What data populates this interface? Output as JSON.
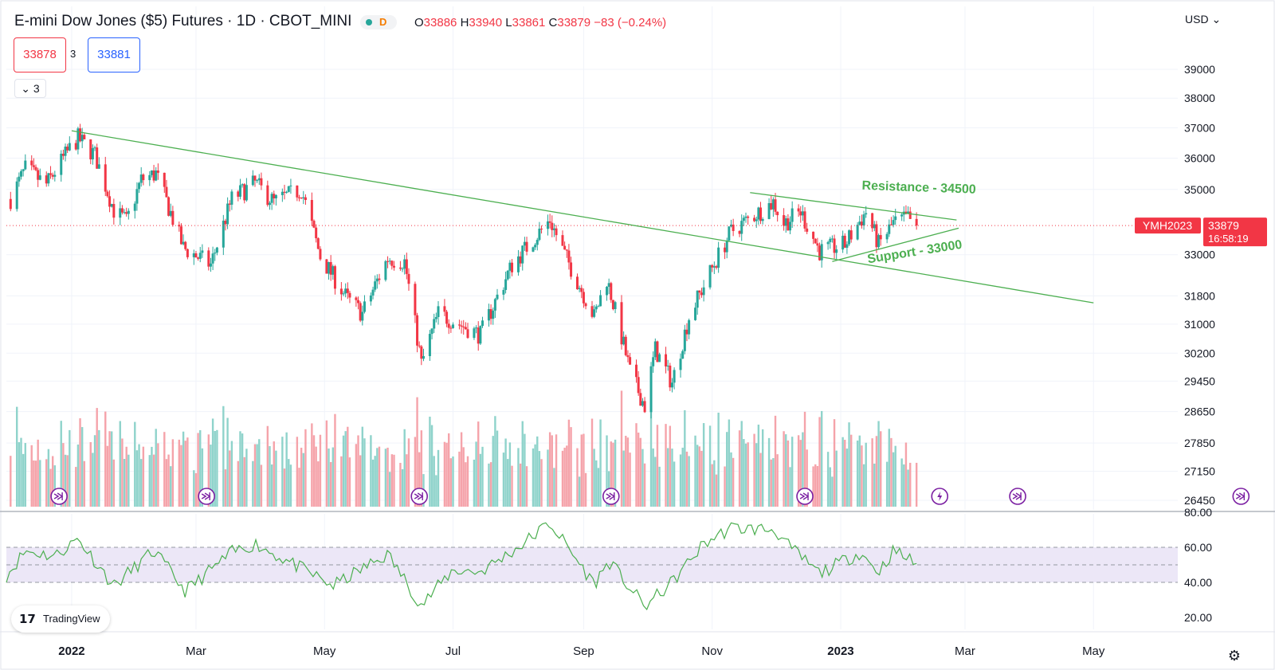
{
  "header": {
    "title": "E-mini Dow Jones ($5) Futures · 1D · CBOT_MINI",
    "status_badge": "D",
    "ohlc": {
      "o_label": "O",
      "o": "33886",
      "h_label": "H",
      "h": "33940",
      "l_label": "L",
      "l": "33861",
      "c_label": "C",
      "c": "33879",
      "change": "−83 (−0.24%)"
    },
    "sell_price": "33878",
    "spread": "3",
    "buy_price": "33881",
    "indicators_count": "3",
    "currency": "USD"
  },
  "price_badge": {
    "symbol": "YMH2023",
    "price": "33879",
    "countdown": "16:58:19"
  },
  "logo_text": "TradingView",
  "colors": {
    "up": "#26a69a",
    "down": "#f23645",
    "trendline": "#4caf50",
    "rsi_line": "#4caf50",
    "rsi_band": "#ece7f7",
    "event_marker": "#7b1fa2"
  },
  "chart_data": [
    {
      "type": "candlestick",
      "title": "E-mini Dow Jones ($5) Futures · 1D · CBOT_MINI",
      "y_axis": {
        "ticks": [
          "39000",
          "38000",
          "37000",
          "36000",
          "35000",
          "33000",
          "31800",
          "31000",
          "30200",
          "29450",
          "28650",
          "27850",
          "27150",
          "26450"
        ],
        "tick_values": [
          39000,
          38000,
          37000,
          36000,
          35000,
          33000,
          31800,
          31000,
          30200,
          29450,
          28650,
          27850,
          27150,
          26450
        ],
        "scale": "log"
      },
      "x_axis": {
        "ticks": [
          "2022",
          "Mar",
          "May",
          "Jul",
          "Sep",
          "Nov",
          "2023",
          "Mar",
          "May"
        ],
        "tick_dates": [
          "2022-01-01",
          "2022-03-01",
          "2022-05-01",
          "2022-07-01",
          "2022-09-01",
          "2022-11-01",
          "2023-01-01",
          "2023-03-01",
          "2023-05-01"
        ],
        "range": [
          "2021-12-01",
          "2023-06-10"
        ]
      },
      "price_path": [
        {
          "date": "2021-12-03",
          "price": 34700
        },
        {
          "date": "2021-12-10",
          "price": 35650
        },
        {
          "date": "2021-12-20",
          "price": 35150
        },
        {
          "date": "2021-12-31",
          "price": 36300
        },
        {
          "date": "2022-01-04",
          "price": 36650
        },
        {
          "date": "2022-01-12",
          "price": 36100
        },
        {
          "date": "2022-01-21",
          "price": 34350
        },
        {
          "date": "2022-01-27",
          "price": 34000
        },
        {
          "date": "2022-02-03",
          "price": 35300
        },
        {
          "date": "2022-02-10",
          "price": 35500
        },
        {
          "date": "2022-02-23",
          "price": 33200
        },
        {
          "date": "2022-03-08",
          "price": 32700
        },
        {
          "date": "2022-03-18",
          "price": 34700
        },
        {
          "date": "2022-03-29",
          "price": 35200
        },
        {
          "date": "2022-04-07",
          "price": 34600
        },
        {
          "date": "2022-04-20",
          "price": 35000
        },
        {
          "date": "2022-04-29",
          "price": 32950
        },
        {
          "date": "2022-05-12",
          "price": 31700
        },
        {
          "date": "2022-05-19",
          "price": 31300
        },
        {
          "date": "2022-05-31",
          "price": 32900
        },
        {
          "date": "2022-06-08",
          "price": 32800
        },
        {
          "date": "2022-06-16",
          "price": 29900
        },
        {
          "date": "2022-06-24",
          "price": 31300
        },
        {
          "date": "2022-07-14",
          "price": 30700
        },
        {
          "date": "2022-07-29",
          "price": 32700
        },
        {
          "date": "2022-08-16",
          "price": 34050
        },
        {
          "date": "2022-08-23",
          "price": 33000
        },
        {
          "date": "2022-09-06",
          "price": 31200
        },
        {
          "date": "2022-09-12",
          "price": 32300
        },
        {
          "date": "2022-09-23",
          "price": 29700
        },
        {
          "date": "2022-09-30",
          "price": 28800
        },
        {
          "date": "2022-10-05",
          "price": 30300
        },
        {
          "date": "2022-10-13",
          "price": 29400
        },
        {
          "date": "2022-10-21",
          "price": 31200
        },
        {
          "date": "2022-11-01",
          "price": 32600
        },
        {
          "date": "2022-11-10",
          "price": 33700
        },
        {
          "date": "2022-11-30",
          "price": 34600
        },
        {
          "date": "2022-12-05",
          "price": 33950
        },
        {
          "date": "2022-12-13",
          "price": 34300
        },
        {
          "date": "2022-12-22",
          "price": 33100
        },
        {
          "date": "2023-01-03",
          "price": 33300
        },
        {
          "date": "2023-01-13",
          "price": 34300
        },
        {
          "date": "2023-01-19",
          "price": 33300
        },
        {
          "date": "2023-01-26",
          "price": 33950
        },
        {
          "date": "2023-02-02",
          "price": 34100
        },
        {
          "date": "2023-02-06",
          "price": 33879
        }
      ],
      "volume_scale": "relative",
      "rsi": {
        "ticks": [
          "80.00",
          "60.00",
          "40.00",
          "20.00"
        ],
        "tick_values": [
          80,
          60,
          40,
          20
        ],
        "upper_band": 60,
        "lower_band": 40,
        "mid": 50,
        "path": [
          {
            "date": "2021-12-01",
            "value": 44
          },
          {
            "date": "2021-12-10",
            "value": 58
          },
          {
            "date": "2021-12-24",
            "value": 55
          },
          {
            "date": "2022-01-04",
            "value": 65
          },
          {
            "date": "2022-01-21",
            "value": 38
          },
          {
            "date": "2022-02-09",
            "value": 58
          },
          {
            "date": "2022-02-24",
            "value": 35
          },
          {
            "date": "2022-03-18",
            "value": 57
          },
          {
            "date": "2022-03-29",
            "value": 62
          },
          {
            "date": "2022-04-26",
            "value": 44
          },
          {
            "date": "2022-05-05",
            "value": 38
          },
          {
            "date": "2022-05-31",
            "value": 56
          },
          {
            "date": "2022-06-16",
            "value": 27
          },
          {
            "date": "2022-07-01",
            "value": 47
          },
          {
            "date": "2022-07-14",
            "value": 46
          },
          {
            "date": "2022-08-01",
            "value": 60
          },
          {
            "date": "2022-08-16",
            "value": 74
          },
          {
            "date": "2022-09-06",
            "value": 39
          },
          {
            "date": "2022-09-13",
            "value": 52
          },
          {
            "date": "2022-09-30",
            "value": 26
          },
          {
            "date": "2022-10-13",
            "value": 40
          },
          {
            "date": "2022-10-28",
            "value": 62
          },
          {
            "date": "2022-11-10",
            "value": 71
          },
          {
            "date": "2022-12-01",
            "value": 70
          },
          {
            "date": "2022-12-06",
            "value": 62
          },
          {
            "date": "2022-12-22",
            "value": 45
          },
          {
            "date": "2023-01-10",
            "value": 57
          },
          {
            "date": "2023-01-19",
            "value": 46
          },
          {
            "date": "2023-01-26",
            "value": 58
          },
          {
            "date": "2023-02-06",
            "value": 51
          }
        ]
      },
      "trendlines": [
        {
          "from": {
            "date": "2022-01-01",
            "price": 36900
          },
          "to": {
            "date": "2023-05-01",
            "price": 31600
          }
        },
        {
          "from": {
            "date": "2022-11-19",
            "price": 34900
          },
          "to": {
            "date": "2023-02-25",
            "price": 34050
          }
        },
        {
          "from": {
            "date": "2022-12-28",
            "price": 32800
          },
          "to": {
            "date": "2023-02-26",
            "price": 33800
          }
        }
      ],
      "annotations": [
        {
          "text": "Resistance - 34500",
          "date": "2023-01-11",
          "price": 35000
        },
        {
          "text": "Support - 33000",
          "date": "2023-01-14",
          "price": 32750
        }
      ],
      "current_price": 33879,
      "event_markers": [
        {
          "date": "2021-12-26",
          "kind": "arrow"
        },
        {
          "date": "2022-03-06",
          "kind": "arrow"
        },
        {
          "date": "2022-06-15",
          "kind": "arrow"
        },
        {
          "date": "2022-09-14",
          "kind": "arrow"
        },
        {
          "date": "2022-12-15",
          "kind": "arrow"
        },
        {
          "date": "2023-02-17",
          "kind": "bolt"
        },
        {
          "date": "2023-03-26",
          "kind": "arrow"
        },
        {
          "date": "2023-07-10",
          "kind": "arrow"
        }
      ]
    }
  ]
}
